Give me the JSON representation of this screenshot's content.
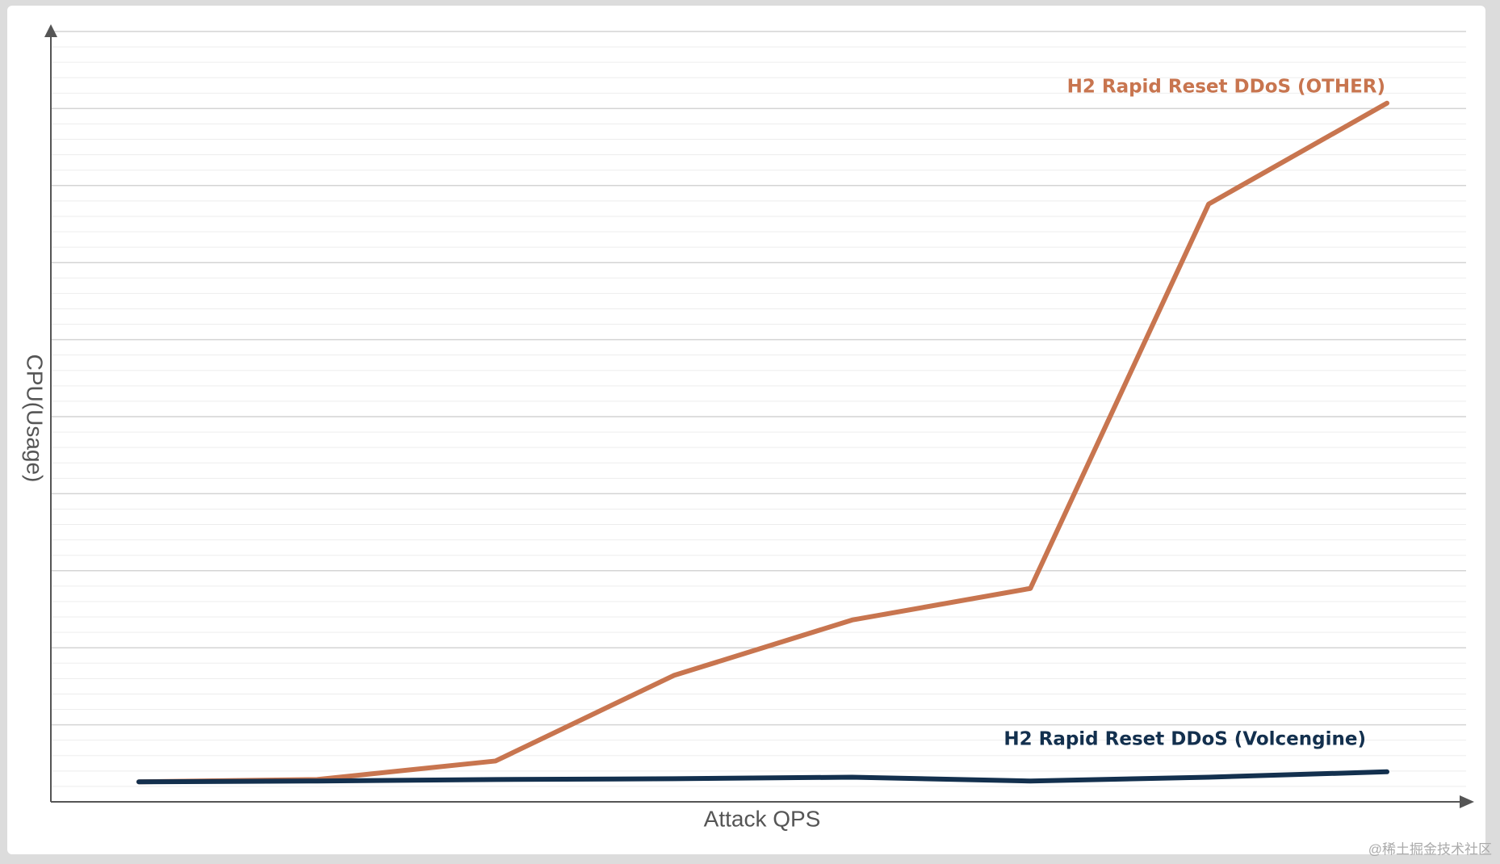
{
  "chart_data": {
    "type": "line",
    "x_label": "Attack QPS",
    "y_label": "CPU(Usage)",
    "categories": [
      null,
      null,
      null,
      null,
      null,
      null,
      null,
      null
    ],
    "series": [
      {
        "name": "H2 Rapid Reset DDoS (OTHER)",
        "color": "#c8754f",
        "values": [
          2.6,
          2.9,
          5.3,
          16.4,
          23.6,
          27.7,
          77.6,
          90.7
        ]
      },
      {
        "name": "H2 Rapid Reset DDoS (Volcengine)",
        "color": "#13304e",
        "values": [
          2.6,
          2.7,
          2.9,
          3.0,
          3.2,
          2.7,
          3.2,
          3.9
        ]
      }
    ],
    "ylim": [
      0,
      100
    ],
    "grid": true,
    "watermark": "@稀土掘金技术社区"
  }
}
